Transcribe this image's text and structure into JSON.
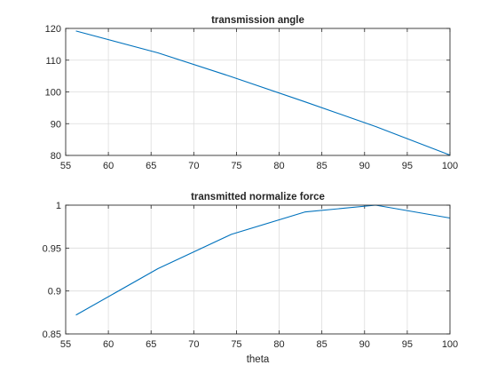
{
  "chart_data": [
    {
      "type": "line",
      "title": "transmission angle",
      "xlabel": "",
      "ylabel": "",
      "xlim": [
        55,
        100
      ],
      "ylim": [
        80,
        120
      ],
      "xticks": [
        "55",
        "60",
        "65",
        "70",
        "75",
        "80",
        "85",
        "90",
        "95",
        "100"
      ],
      "yticks": [
        "80",
        "90",
        "100",
        "110",
        "120"
      ],
      "grid": true,
      "color": "#0072bd",
      "series": [
        {
          "x": [
            56.2,
            65.8,
            74.4,
            83.0,
            91.3,
            100.0
          ],
          "y": [
            119.2,
            112.3,
            104.8,
            96.9,
            89.1,
            80.1
          ]
        }
      ]
    },
    {
      "type": "line",
      "title": "transmitted normalize force",
      "xlabel": "theta",
      "ylabel": "",
      "xlim": [
        55,
        100
      ],
      "ylim": [
        0.85,
        1.0
      ],
      "xticks": [
        "55",
        "60",
        "65",
        "70",
        "75",
        "80",
        "85",
        "90",
        "95",
        "100"
      ],
      "yticks": [
        "0.85",
        "0.9",
        "0.95",
        "1"
      ],
      "grid": true,
      "color": "#0072bd",
      "series": [
        {
          "x": [
            56.2,
            65.8,
            74.4,
            83.0,
            91.3,
            100.0
          ],
          "y": [
            0.872,
            0.926,
            0.966,
            0.992,
            1.0,
            0.985
          ]
        }
      ]
    }
  ]
}
